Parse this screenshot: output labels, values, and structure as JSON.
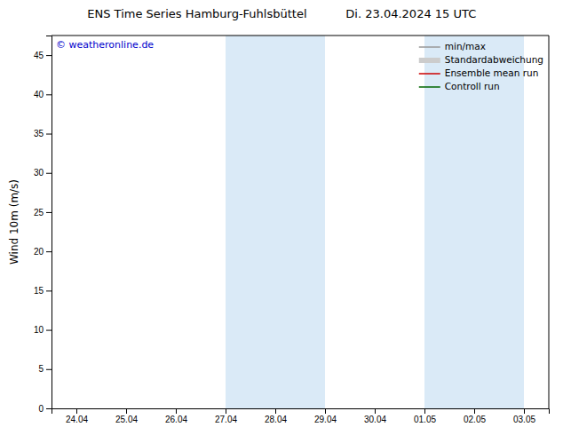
{
  "chart_data": {
    "type": "line",
    "title": "ENS Time Series Hamburg-Fuhlsbüttel",
    "subtitle": "Di. 23.04.2024 15 UTC",
    "y_label": "Wind 10m (m/s)",
    "annotations": [
      {
        "text": "© weatheronline.de",
        "color": "#0000cc"
      }
    ],
    "categories": [
      "24.04",
      "25.04",
      "26.04",
      "27.04",
      "28.04",
      "29.04",
      "30.04",
      "01.05",
      "02.05",
      "03.05"
    ],
    "series": [
      {
        "name": "min/max",
        "color": "#999999",
        "type": "line",
        "values": [
          null,
          null,
          null,
          null,
          null,
          null,
          null,
          null,
          null,
          null
        ]
      },
      {
        "name": "Standardabweichung",
        "color": "#cccccc",
        "type": "band",
        "values": [
          null,
          null,
          null,
          null,
          null,
          null,
          null,
          null,
          null,
          null
        ]
      },
      {
        "name": "Ensemble mean run",
        "color": "#cc0000",
        "type": "line",
        "values": [
          null,
          null,
          null,
          null,
          null,
          null,
          null,
          null,
          null,
          null
        ]
      },
      {
        "name": "Controll run",
        "color": "#006600",
        "type": "line",
        "values": [
          null,
          null,
          null,
          null,
          null,
          null,
          null,
          null,
          null,
          null
        ]
      }
    ],
    "shaded_bands": [
      {
        "from": "27.04",
        "to": "28.04",
        "color": "#daeaf7"
      },
      {
        "from": "28.04",
        "to": "29.04",
        "color": "#daeaf7"
      },
      {
        "from": "01.05",
        "to": "02.05",
        "color": "#daeaf7"
      },
      {
        "from": "02.05",
        "to": "03.05",
        "color": "#daeaf7"
      }
    ],
    "ylim": [
      0,
      47.5
    ],
    "yticks": [
      0,
      5,
      10,
      15,
      20,
      25,
      30,
      35,
      40,
      45
    ],
    "grid": false,
    "legend": "upper right"
  }
}
